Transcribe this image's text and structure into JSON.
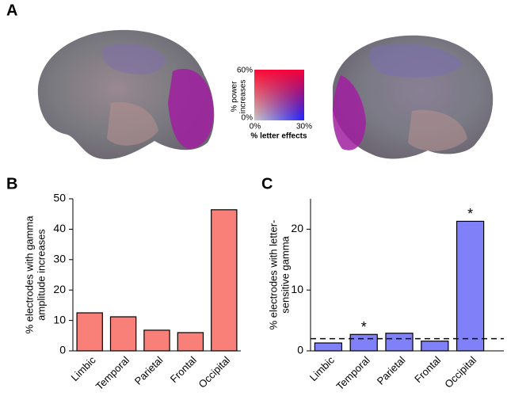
{
  "figure": {
    "panels": [
      "A",
      "B",
      "C"
    ],
    "colormap": {
      "y_label": [
        "% power",
        "increases"
      ],
      "y_max": "60%",
      "y_min": "0%",
      "x_min": "0%",
      "x_max": "30%",
      "x_label": "% letter effects"
    }
  },
  "chart_data": [
    {
      "type": "bar",
      "ylabel": [
        "% electrodes with gamma",
        "amplitude increases"
      ],
      "categories": [
        "Limbic",
        "Temporal",
        "Parietal",
        "Frontal",
        "Occipital"
      ],
      "values": [
        12.5,
        11.2,
        6.8,
        6.0,
        46.4
      ],
      "color": "#f88078",
      "ylim": [
        0,
        50
      ],
      "yticks": [
        0,
        10,
        20,
        30,
        40,
        50
      ]
    },
    {
      "type": "bar",
      "ylabel": [
        "% electrodes with letter-",
        "sensitive gamma"
      ],
      "categories": [
        "Limbic",
        "Temporal",
        "Parietal",
        "Frontal",
        "Occipital"
      ],
      "values": [
        1.3,
        2.7,
        2.9,
        1.6,
        21.3
      ],
      "color": "#8080f8",
      "annotations": [
        null,
        "*",
        null,
        null,
        "*"
      ],
      "reference_line": 2.0,
      "ylim": [
        0,
        25
      ],
      "yticks": [
        0,
        10,
        20
      ]
    }
  ]
}
